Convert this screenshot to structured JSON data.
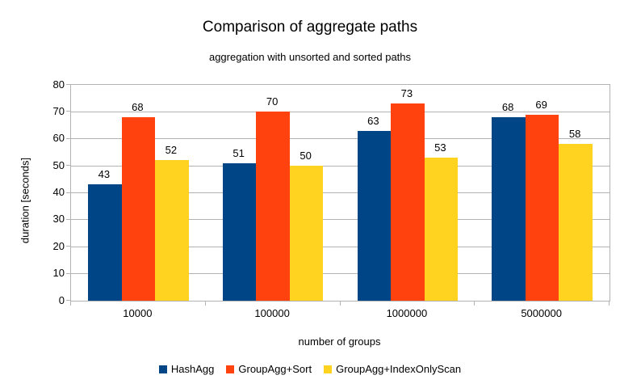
{
  "chart_data": {
    "type": "bar",
    "title": "Comparison of aggregate paths",
    "subtitle": "aggregation with unsorted and sorted paths",
    "xlabel": "number of groups",
    "ylabel": "duration [seconds]",
    "categories": [
      "10000",
      "100000",
      "1000000",
      "5000000"
    ],
    "series": [
      {
        "name": "HashAgg",
        "color": "#004586",
        "values": [
          43,
          51,
          63,
          68
        ]
      },
      {
        "name": "GroupAgg+Sort",
        "color": "#FF420E",
        "values": [
          68,
          70,
          73,
          69
        ]
      },
      {
        "name": "GroupAgg+IndexOnlyScan",
        "color": "#FFD320",
        "values": [
          52,
          50,
          53,
          58
        ]
      }
    ],
    "ylim": [
      0,
      80
    ],
    "ytick_step": 10,
    "grid": true,
    "legend_position": "bottom",
    "colors": {
      "grid": "#B3B3B3",
      "text": "#000000",
      "background": "#FFFFFF"
    }
  }
}
